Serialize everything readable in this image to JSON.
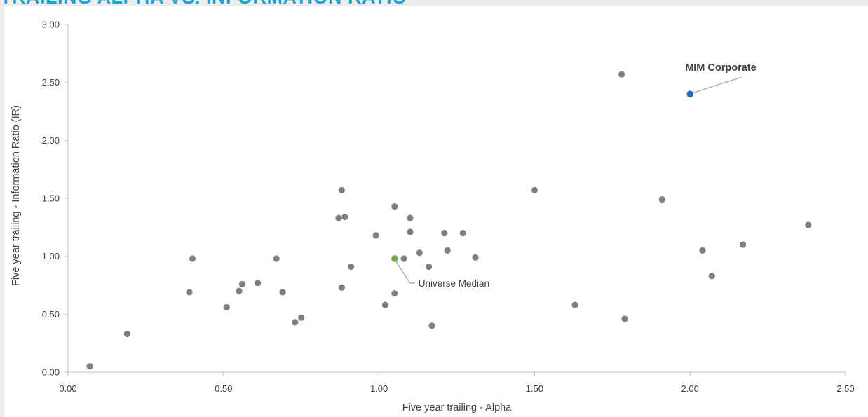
{
  "page": {
    "title": "TRAILING ALPHA VS. INFORMATION RATIO"
  },
  "colors": {
    "title": "#1aa3dc",
    "point": "#7f7f7f",
    "highlight": "#1f6bbd",
    "median": "#70ad47",
    "axis": "#bfbfbf",
    "text": "#404040"
  },
  "chart_data": {
    "type": "scatter",
    "xlabel": "Five year trailing - Alpha",
    "ylabel": "Five year trailing - Information Ratio (IR)",
    "xlim": [
      0,
      2.5
    ],
    "ylim": [
      0,
      3
    ],
    "xticks": [
      "0.00",
      "0.50",
      "1.00",
      "1.50",
      "2.00",
      "2.50"
    ],
    "yticks": [
      "0.00",
      "0.50",
      "1.00",
      "1.50",
      "2.00",
      "2.50",
      "3.00"
    ],
    "grid": false,
    "points": [
      {
        "x": 0.07,
        "y": 0.05
      },
      {
        "x": 0.19,
        "y": 0.33
      },
      {
        "x": 0.39,
        "y": 0.69
      },
      {
        "x": 0.4,
        "y": 0.98
      },
      {
        "x": 0.51,
        "y": 0.56
      },
      {
        "x": 0.55,
        "y": 0.7
      },
      {
        "x": 0.56,
        "y": 0.76
      },
      {
        "x": 0.61,
        "y": 0.77
      },
      {
        "x": 0.67,
        "y": 0.98
      },
      {
        "x": 0.69,
        "y": 0.69
      },
      {
        "x": 0.73,
        "y": 0.43
      },
      {
        "x": 0.75,
        "y": 0.47
      },
      {
        "x": 0.87,
        "y": 1.33
      },
      {
        "x": 0.88,
        "y": 1.57
      },
      {
        "x": 0.88,
        "y": 0.73
      },
      {
        "x": 0.89,
        "y": 1.34
      },
      {
        "x": 0.91,
        "y": 0.91
      },
      {
        "x": 0.99,
        "y": 1.18
      },
      {
        "x": 1.02,
        "y": 0.58
      },
      {
        "x": 1.05,
        "y": 1.43
      },
      {
        "x": 1.05,
        "y": 0.68
      },
      {
        "x": 1.08,
        "y": 0.98
      },
      {
        "x": 1.1,
        "y": 1.33
      },
      {
        "x": 1.1,
        "y": 1.21
      },
      {
        "x": 1.13,
        "y": 1.03
      },
      {
        "x": 1.16,
        "y": 0.91
      },
      {
        "x": 1.17,
        "y": 0.4
      },
      {
        "x": 1.21,
        "y": 1.2
      },
      {
        "x": 1.22,
        "y": 1.05
      },
      {
        "x": 1.27,
        "y": 1.2
      },
      {
        "x": 1.31,
        "y": 0.99
      },
      {
        "x": 1.5,
        "y": 1.57
      },
      {
        "x": 1.63,
        "y": 0.58
      },
      {
        "x": 1.78,
        "y": 2.57
      },
      {
        "x": 1.79,
        "y": 0.46
      },
      {
        "x": 1.91,
        "y": 1.49
      },
      {
        "x": 2.04,
        "y": 1.05
      },
      {
        "x": 2.07,
        "y": 0.83
      },
      {
        "x": 2.17,
        "y": 1.1
      },
      {
        "x": 2.38,
        "y": 1.27
      }
    ],
    "highlight": {
      "label": "MIM Corporate",
      "x": 2.0,
      "y": 2.4
    },
    "median": {
      "label": "Universe Median",
      "x": 1.05,
      "y": 0.98
    }
  }
}
